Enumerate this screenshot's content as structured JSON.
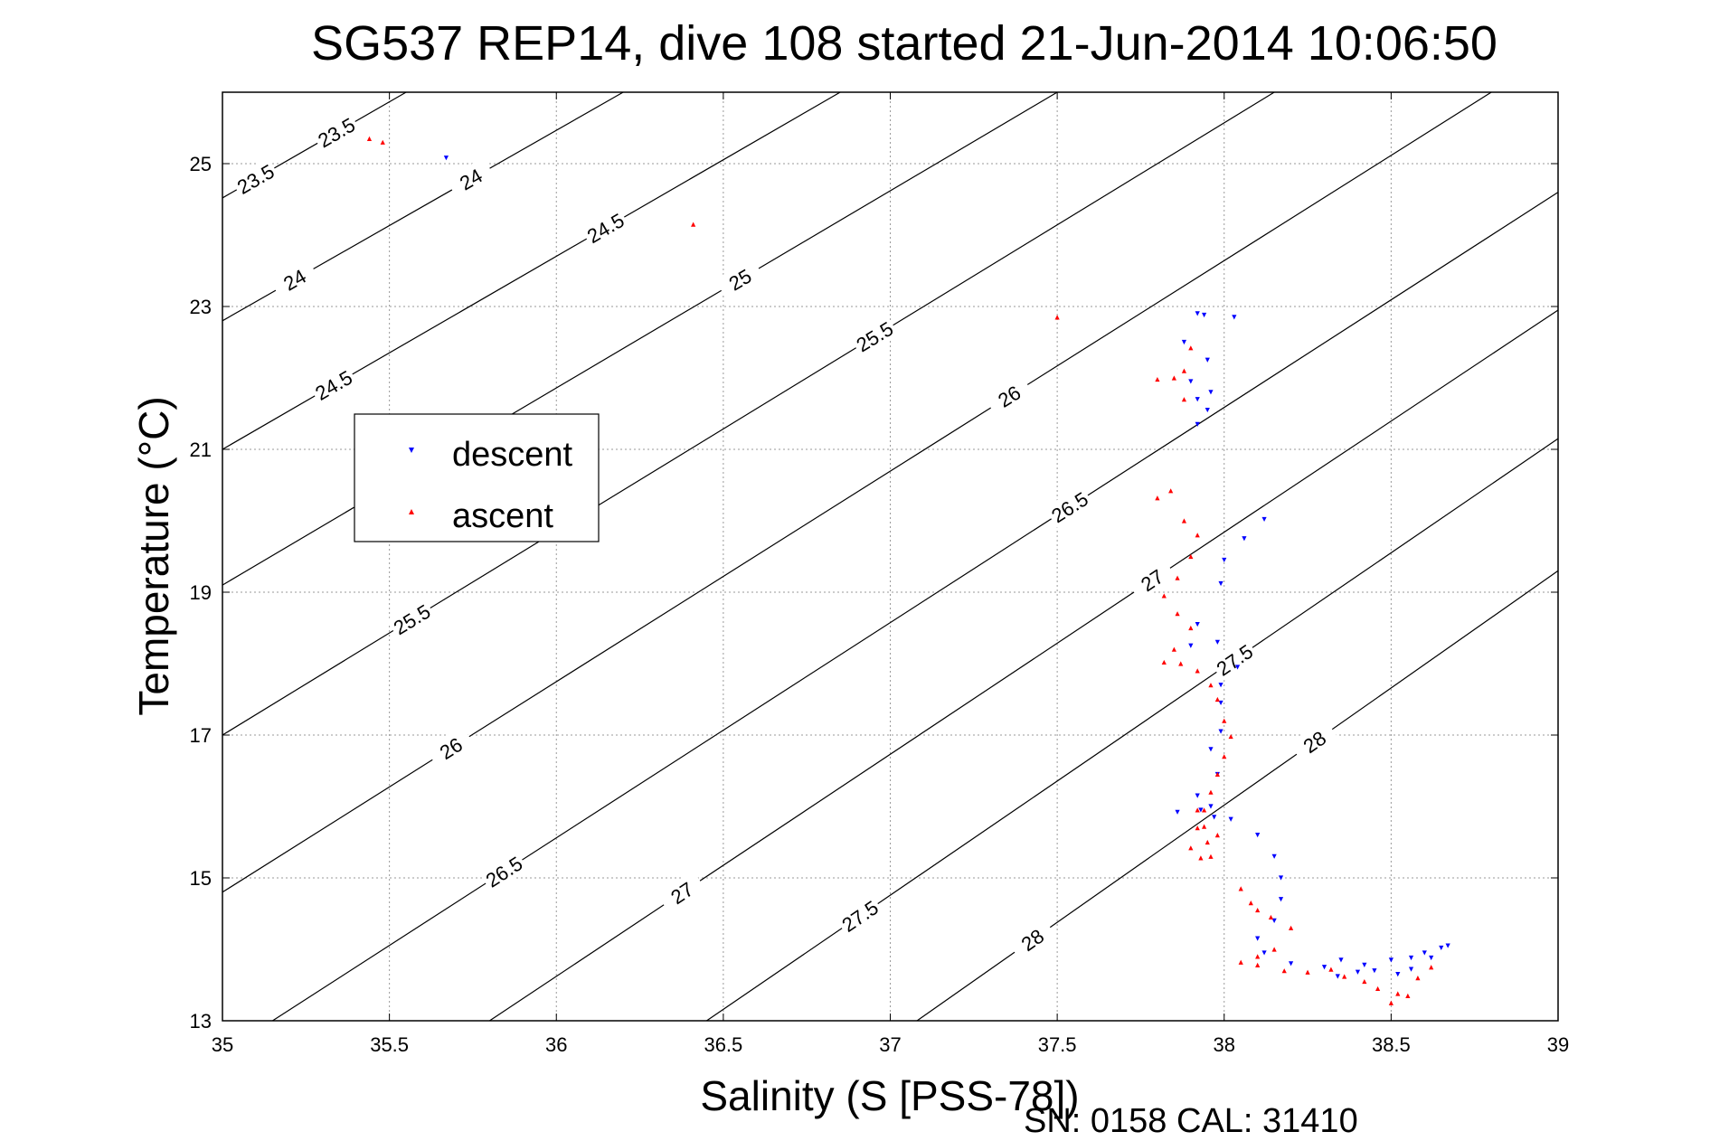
{
  "chart_data": {
    "type": "scatter",
    "title": "SG537 REP14, dive 108 started 21-Jun-2014 10:06:50",
    "xlabel": "Salinity (S [PSS-78])",
    "ylabel": "Temperature (°C)",
    "xlim": [
      35,
      39
    ],
    "ylim": [
      13,
      26
    ],
    "xticks": [
      "35",
      "35.5",
      "36",
      "36.5",
      "37",
      "37.5",
      "38",
      "38.5",
      "39"
    ],
    "yticks": [
      "13",
      "15",
      "17",
      "19",
      "21",
      "23",
      "25"
    ],
    "grid": true,
    "footer": "SN: 0158  CAL: 31410",
    "legend": {
      "placement": "upper-left",
      "entries": [
        {
          "label": "descent",
          "color": "#0000ff",
          "marker": "triangle-down"
        },
        {
          "label": "ascent",
          "color": "#ff0000",
          "marker": "triangle-up"
        }
      ]
    },
    "isopycnals": [
      {
        "sigma": 23.5,
        "label": "23.5",
        "x": [
          35.0,
          35.55
        ],
        "y": [
          24.52,
          26.0
        ]
      },
      {
        "sigma": 24.0,
        "label": "24",
        "x": [
          35.0,
          36.2
        ],
        "y": [
          22.8,
          26.0
        ]
      },
      {
        "sigma": 24.5,
        "label": "24.5",
        "x": [
          35.0,
          36.85
        ],
        "y": [
          21.0,
          26.0
        ]
      },
      {
        "sigma": 25.0,
        "label": "25",
        "x": [
          35.0,
          37.5
        ],
        "y": [
          19.1,
          26.0
        ]
      },
      {
        "sigma": 25.5,
        "label": "25.5",
        "x": [
          35.0,
          38.15
        ],
        "y": [
          17.0,
          26.0
        ]
      },
      {
        "sigma": 26.0,
        "label": "26",
        "x": [
          35.0,
          38.8
        ],
        "y": [
          14.8,
          26.0
        ]
      },
      {
        "sigma": 26.5,
        "label": "26.5",
        "x": [
          35.15,
          39.0
        ],
        "y": [
          13.0,
          24.6
        ]
      },
      {
        "sigma": 27.0,
        "label": "27",
        "x": [
          35.8,
          39.0
        ],
        "y": [
          13.0,
          22.95
        ]
      },
      {
        "sigma": 27.5,
        "label": "27.5",
        "x": [
          36.45,
          39.0
        ],
        "y": [
          13.0,
          21.15
        ]
      },
      {
        "sigma": 28.0,
        "label": "28",
        "x": [
          37.08,
          39.0
        ],
        "y": [
          13.0,
          19.3
        ]
      }
    ],
    "series": [
      {
        "name": "descent",
        "color": "#0000ff",
        "marker": "triangle-down",
        "x": [
          35.67,
          37.92,
          37.94,
          38.03,
          37.88,
          37.95,
          37.9,
          37.96,
          37.92,
          37.95,
          37.92,
          38.12,
          38.06,
          38.0,
          37.99,
          37.92,
          37.98,
          37.9,
          38.04,
          37.99,
          37.99,
          37.99,
          37.96,
          37.98,
          37.92,
          37.96,
          37.93,
          37.86,
          37.97,
          38.02,
          38.1,
          38.15,
          38.17,
          38.17,
          38.15,
          38.1,
          38.12,
          38.2,
          38.3,
          38.35,
          38.42,
          38.5,
          38.56,
          38.6,
          38.65,
          38.67,
          38.62,
          38.56,
          38.52,
          38.45,
          38.4,
          38.34
        ],
        "y": [
          25.08,
          22.9,
          22.88,
          22.85,
          22.5,
          22.25,
          21.95,
          21.8,
          21.7,
          21.55,
          21.35,
          20.02,
          19.75,
          19.45,
          19.12,
          18.55,
          18.3,
          18.25,
          17.95,
          17.7,
          17.45,
          17.05,
          16.8,
          16.45,
          16.15,
          16.0,
          15.95,
          15.92,
          15.85,
          15.82,
          15.6,
          15.3,
          15.0,
          14.7,
          14.4,
          14.15,
          13.95,
          13.8,
          13.75,
          13.85,
          13.78,
          13.85,
          13.88,
          13.95,
          14.02,
          14.05,
          13.88,
          13.72,
          13.65,
          13.7,
          13.68,
          13.62
        ]
      },
      {
        "name": "ascent",
        "color": "#ff0000",
        "marker": "triangle-up",
        "x": [
          35.44,
          35.48,
          36.41,
          37.5,
          37.9,
          37.88,
          37.85,
          37.8,
          37.88,
          37.84,
          37.8,
          37.88,
          37.92,
          37.9,
          37.86,
          37.82,
          37.86,
          37.9,
          37.85,
          37.82,
          37.87,
          37.92,
          37.96,
          37.98,
          38.0,
          38.02,
          38.0,
          37.98,
          37.96,
          37.94,
          37.92,
          37.9,
          37.93,
          37.96,
          37.95,
          37.94,
          37.92,
          37.98,
          38.05,
          38.08,
          38.1,
          38.14,
          38.2,
          38.15,
          38.1,
          38.05,
          38.1,
          38.18,
          38.25,
          38.32,
          38.36,
          38.42,
          38.46,
          38.52,
          38.58,
          38.62,
          38.55,
          38.5
        ],
        "y": [
          25.35,
          25.3,
          24.15,
          22.85,
          22.42,
          22.1,
          22.0,
          21.98,
          21.7,
          20.42,
          20.32,
          20.0,
          19.8,
          19.5,
          19.2,
          18.95,
          18.7,
          18.5,
          18.2,
          18.02,
          18.0,
          17.9,
          17.7,
          17.5,
          17.2,
          16.98,
          16.7,
          16.45,
          16.2,
          15.95,
          15.7,
          15.42,
          15.28,
          15.3,
          15.5,
          15.72,
          15.95,
          15.6,
          14.85,
          14.65,
          14.55,
          14.45,
          14.3,
          14.0,
          13.9,
          13.82,
          13.78,
          13.7,
          13.68,
          13.72,
          13.62,
          13.55,
          13.45,
          13.38,
          13.6,
          13.75,
          13.35,
          13.25
        ]
      }
    ]
  }
}
